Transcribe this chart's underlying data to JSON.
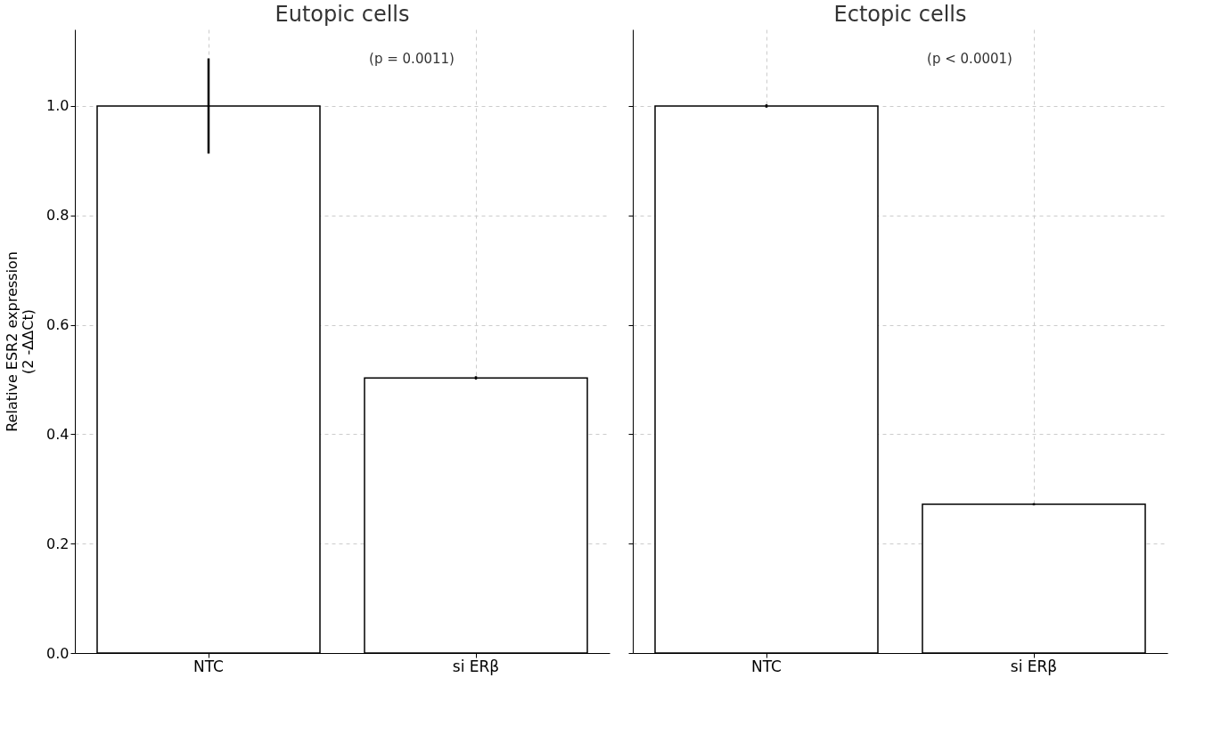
{
  "chart_data": [
    {
      "type": "bar",
      "title": "Eutopic cells",
      "ylabel": "Relative ESR2 expression\n(2  -ΔΔCt)",
      "categories": [
        "NTC",
        "si ERβ"
      ],
      "series": [
        {
          "color": "#ffffff",
          "values": [
            1.0,
            0.503
          ],
          "errors": [
            0.087,
            0.003
          ]
        }
      ],
      "ylim": [
        0,
        1.14
      ],
      "yticks": [
        {
          "value": 0,
          "label": "0.0"
        },
        0.2,
        0.4,
        0.6,
        0.8,
        {
          "value": 1,
          "label": "1.0"
        }
      ],
      "grid": true,
      "annotations": [
        "(p = 0.0011)"
      ]
    },
    {
      "type": "bar",
      "title": "Ectopic cells",
      "categories": [
        "NTC",
        "si ERβ"
      ],
      "series": [
        {
          "color": "#ffffff",
          "values": [
            1.0,
            0.272
          ],
          "errors": [
            0.003,
            0.002
          ]
        }
      ],
      "ylim": [
        0,
        1.14
      ],
      "yticks": [
        0,
        0.2,
        0.4,
        0.6,
        0.8,
        1
      ],
      "grid": true,
      "tick_labels": "x",
      "annotations": [
        "(p < 0.0001)"
      ]
    }
  ]
}
